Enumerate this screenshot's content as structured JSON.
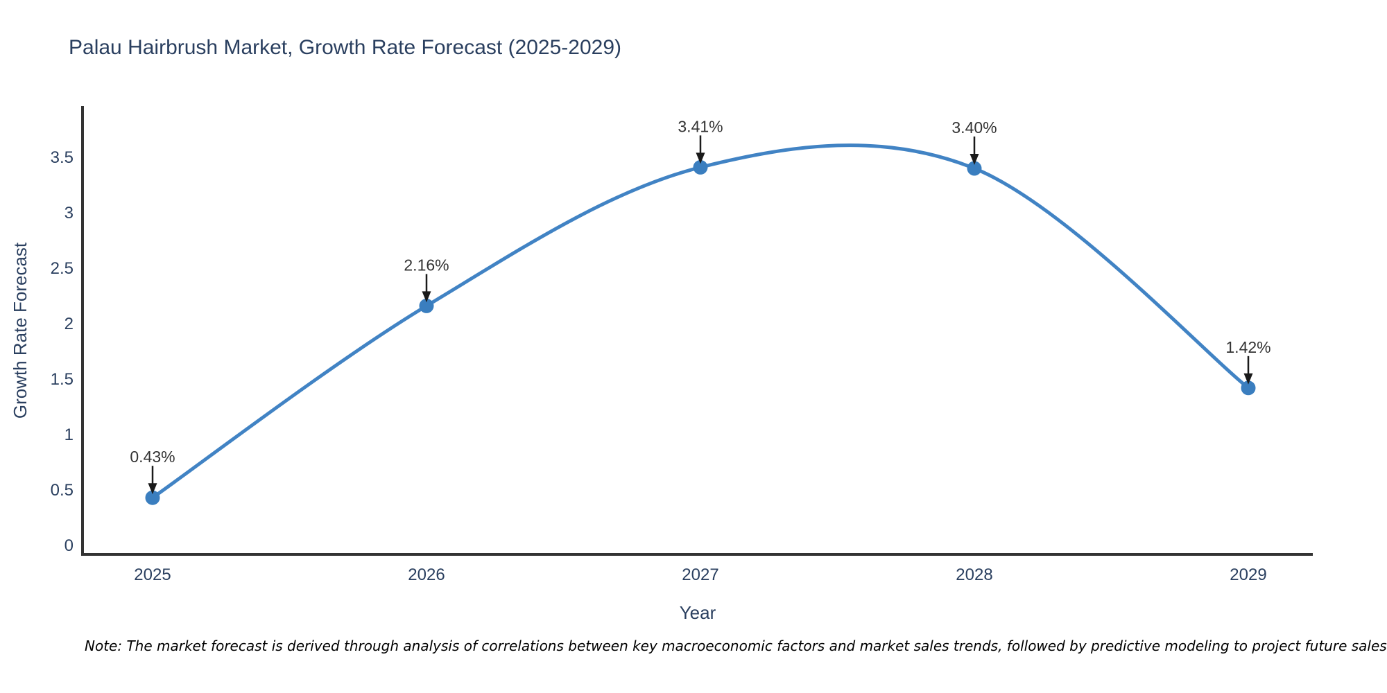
{
  "chart_data": {
    "type": "line",
    "line_shape": "spline",
    "title": "Palau Hairbrush Market, Growth Rate Forecast (2025-2029)",
    "xlabel": "Year",
    "ylabel": "Growth Rate Forecast",
    "categories": [
      "2025",
      "2026",
      "2027",
      "2028",
      "2029"
    ],
    "values": [
      0.43,
      2.16,
      3.41,
      3.4,
      1.42
    ],
    "point_labels": [
      "0.43%",
      "2.16%",
      "3.41%",
      "3.40%",
      "1.42%"
    ],
    "ytick_values": [
      0,
      0.5,
      1,
      1.5,
      2,
      2.5,
      3,
      3.5
    ],
    "ytick_labels": [
      "0",
      "0.5",
      "1",
      "1.5",
      "2",
      "2.5",
      "3",
      "3.5"
    ],
    "ylim": [
      0,
      3.7
    ],
    "grid": false,
    "legend": "none",
    "note": "Note: The market forecast is derived through analysis of correlations between key macroeconomic factors and market sales trends, followed by predictive modeling to project future sales",
    "colors": {
      "line": "#4183c4",
      "marker": "#3a7ebf",
      "axis": "#333333",
      "tick_text": "#2a3f5f",
      "title_text": "#2a3f5f",
      "annotation_text": "#333333",
      "arrow": "#1a1a1a",
      "note_text": "#000000",
      "background": "#ffffff"
    }
  }
}
